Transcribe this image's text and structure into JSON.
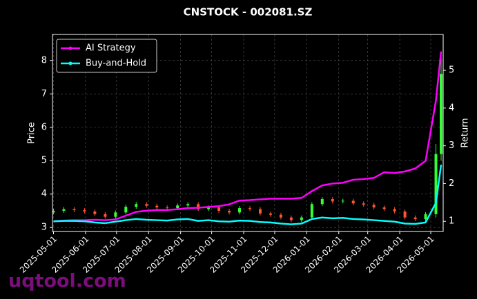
{
  "chart_data": {
    "type": "candlestick",
    "title": "CNSTOCK - 002081.SZ",
    "ylabel": "Price",
    "y2label": "Return",
    "x": [
      "2025-05-01",
      "2025-05-11",
      "2025-05-21",
      "2025-05-31",
      "2025-06-10",
      "2025-06-20",
      "2025-06-30",
      "2025-07-10",
      "2025-07-20",
      "2025-07-30",
      "2025-08-09",
      "2025-08-19",
      "2025-08-29",
      "2025-09-08",
      "2025-09-18",
      "2025-09-28",
      "2025-10-08",
      "2025-10-18",
      "2025-10-28",
      "2025-11-07",
      "2025-11-17",
      "2025-11-27",
      "2025-12-07",
      "2025-12-17",
      "2025-12-27",
      "2026-01-06",
      "2026-01-16",
      "2026-01-26",
      "2026-02-05",
      "2026-02-15",
      "2026-02-25",
      "2026-03-07",
      "2026-03-17",
      "2026-03-27",
      "2026-04-06",
      "2026-04-16",
      "2026-04-26",
      "2026-05-06",
      "2026-05-11"
    ],
    "open": [
      3.45,
      3.5,
      3.55,
      3.52,
      3.48,
      3.4,
      3.32,
      3.45,
      3.62,
      3.7,
      3.65,
      3.6,
      3.58,
      3.66,
      3.7,
      3.55,
      3.6,
      3.5,
      3.45,
      3.58,
      3.55,
      3.42,
      3.38,
      3.3,
      3.22,
      3.3,
      3.7,
      3.85,
      3.78,
      3.8,
      3.72,
      3.68,
      3.6,
      3.55,
      3.48,
      3.3,
      3.25,
      3.4,
      5.2
    ],
    "high": [
      3.56,
      3.61,
      3.61,
      3.58,
      3.54,
      3.46,
      3.51,
      3.68,
      3.76,
      3.76,
      3.71,
      3.66,
      3.72,
      3.76,
      3.76,
      3.66,
      3.66,
      3.56,
      3.64,
      3.64,
      3.61,
      3.48,
      3.44,
      3.36,
      3.36,
      3.76,
      3.91,
      3.91,
      3.86,
      3.86,
      3.78,
      3.74,
      3.66,
      3.61,
      3.54,
      3.36,
      3.46,
      5.5,
      8.2
    ],
    "low": [
      3.39,
      3.44,
      3.46,
      3.42,
      3.34,
      3.26,
      3.26,
      3.39,
      3.56,
      3.59,
      3.54,
      3.52,
      3.52,
      3.6,
      3.49,
      3.49,
      3.44,
      3.39,
      3.39,
      3.49,
      3.36,
      3.32,
      3.24,
      3.16,
      3.16,
      3.24,
      3.64,
      3.72,
      3.72,
      3.66,
      3.62,
      3.54,
      3.49,
      3.42,
      3.24,
      3.19,
      3.19,
      3.3,
      5.0
    ],
    "close": [
      3.5,
      3.55,
      3.52,
      3.48,
      3.4,
      3.32,
      3.45,
      3.62,
      3.7,
      3.65,
      3.6,
      3.58,
      3.66,
      3.7,
      3.55,
      3.6,
      3.5,
      3.45,
      3.58,
      3.55,
      3.42,
      3.38,
      3.3,
      3.22,
      3.3,
      3.7,
      3.85,
      3.78,
      3.8,
      3.72,
      3.68,
      3.6,
      3.55,
      3.48,
      3.3,
      3.25,
      3.4,
      5.2,
      7.6
    ],
    "up_color": "#33ff33",
    "down_color": "#ff5533",
    "series": [
      {
        "name": "AI Strategy",
        "color": "#ff00ff",
        "axis": "y2",
        "values": [
          1.0,
          1.02,
          1.03,
          1.03,
          1.04,
          1.03,
          1.05,
          1.15,
          1.25,
          1.28,
          1.3,
          1.3,
          1.32,
          1.35,
          1.36,
          1.38,
          1.4,
          1.45,
          1.55,
          1.56,
          1.58,
          1.6,
          1.6,
          1.6,
          1.62,
          1.8,
          1.95,
          2.0,
          2.02,
          2.1,
          2.12,
          2.15,
          2.3,
          2.28,
          2.32,
          2.4,
          2.6,
          4.2,
          5.5
        ]
      },
      {
        "name": "Buy-and-Hold",
        "color": "#00ffff",
        "axis": "y2",
        "values": [
          1.0,
          1.01,
          1.01,
          1.0,
          0.97,
          0.95,
          0.99,
          1.03,
          1.06,
          1.04,
          1.03,
          1.02,
          1.05,
          1.06,
          1.01,
          1.03,
          1.0,
          0.99,
          1.02,
          1.01,
          0.98,
          0.97,
          0.94,
          0.92,
          0.94,
          1.06,
          1.1,
          1.08,
          1.09,
          1.06,
          1.05,
          1.03,
          1.01,
          0.99,
          0.94,
          0.93,
          0.97,
          1.49,
          2.5
        ]
      }
    ],
    "xlim": [
      "2025-04-30",
      "2026-05-13"
    ],
    "xticks": [
      "2025-05-01",
      "2025-06-01",
      "2025-07-01",
      "2025-08-01",
      "2025-09-01",
      "2025-10-01",
      "2025-11-01",
      "2025-12-01",
      "2026-01-01",
      "2026-02-01",
      "2026-03-01",
      "2026-04-01",
      "2026-05-01"
    ],
    "ylim": [
      2.88,
      8.78
    ],
    "yticks": [
      3,
      4,
      5,
      6,
      7,
      8
    ],
    "y2lim": [
      0.73,
      5.95
    ],
    "y2ticks": [
      1,
      2,
      3,
      4,
      5
    ],
    "grid": true,
    "legend": "upper left"
  },
  "watermark": "uqtool.com"
}
